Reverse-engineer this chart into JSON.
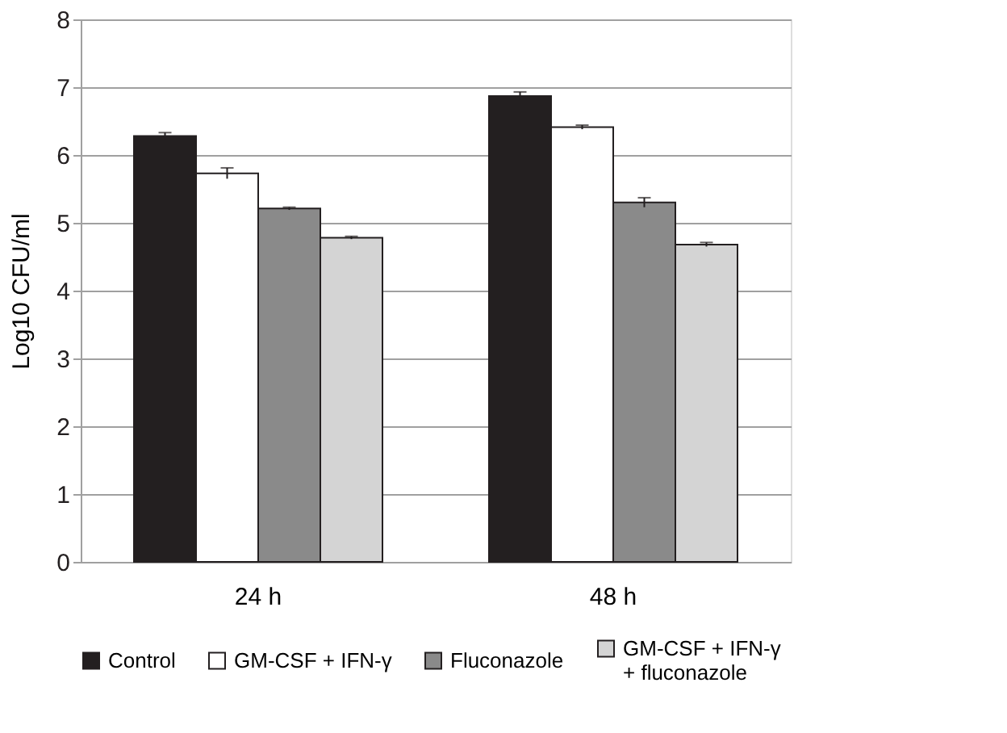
{
  "chart_data": {
    "type": "bar",
    "ylabel": "Log10 CFU/ml",
    "categories": [
      "24 h",
      "48 h"
    ],
    "series": [
      {
        "name": "Control",
        "color": "#231f20",
        "values": [
          6.28,
          6.87
        ],
        "errors": [
          0.05,
          0.06
        ]
      },
      {
        "name": "GM-CSF + IFN-γ",
        "color": "#ffffff",
        "values": [
          5.73,
          6.41
        ],
        "errors": [
          0.08,
          0.03
        ]
      },
      {
        "name": "Fluconazole",
        "color": "#8a8a8a",
        "values": [
          5.21,
          5.3
        ],
        "errors": [
          0.02,
          0.07
        ]
      },
      {
        "name": "GM-CSF + IFN-γ + fluconazole",
        "color": "#d4d4d4",
        "values": [
          4.78,
          4.68
        ],
        "errors": [
          0.02,
          0.03
        ]
      }
    ],
    "ylim": [
      0,
      8
    ],
    "yticks": [
      0,
      1,
      2,
      3,
      4,
      5,
      6,
      7,
      8
    ],
    "grid": "y",
    "legend": "bottom"
  }
}
